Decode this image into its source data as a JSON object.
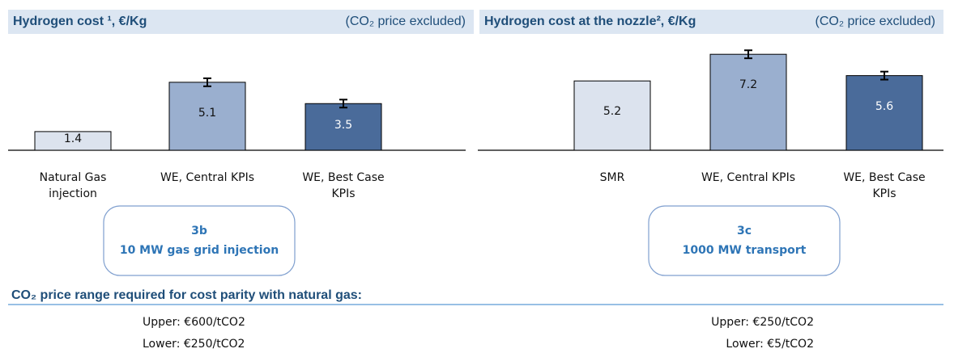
{
  "chart_data": [
    {
      "type": "bar",
      "title": "Hydrogen cost ¹, €/Kg",
      "subtitle": "(CO₂ price excluded)",
      "categories": [
        "Natural Gas injection",
        "WE, Central KPIs",
        "WE, Best Case KPIs"
      ],
      "values": [
        1.4,
        5.1,
        3.5
      ],
      "errors": [
        null,
        0.3,
        0.3
      ],
      "colors": [
        "#dce3ee",
        "#9aafcf",
        "#4a6b9a"
      ],
      "ylim": [
        0,
        8
      ],
      "box": {
        "id": "3b",
        "label": "10 MW gas grid injection"
      }
    },
    {
      "type": "bar",
      "title": "Hydrogen cost at the nozzle², €/Kg",
      "subtitle": "(CO₂ price excluded)",
      "categories": [
        "SMR",
        "WE, Central KPIs",
        "WE, Best Case KPIs"
      ],
      "values": [
        5.2,
        7.2,
        5.6
      ],
      "errors": [
        null,
        0.3,
        0.3
      ],
      "colors": [
        "#dce3ee",
        "#9aafcf",
        "#4a6b9a"
      ],
      "ylim": [
        0,
        8
      ],
      "box": {
        "id": "3c",
        "label": "1000 MW transport"
      }
    }
  ],
  "footer": {
    "title": "CO₂ price range required for cost parity with natural gas:",
    "left": [
      "Upper: €600/tCO2",
      "Lower: €250/tCO2"
    ],
    "right": [
      "Upper: €250/tCO2",
      "Lower: €5/tCO2"
    ]
  }
}
